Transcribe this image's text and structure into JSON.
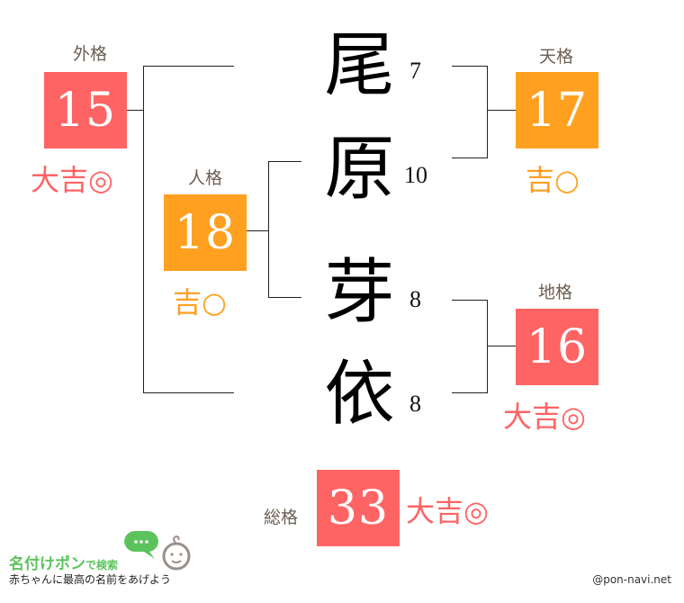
{
  "name_chars": [
    {
      "char": "尾",
      "strokes": "7"
    },
    {
      "char": "原",
      "strokes": "10"
    },
    {
      "char": "芽",
      "strokes": "8"
    },
    {
      "char": "依",
      "strokes": "8"
    }
  ],
  "gaikaku": {
    "label": "外格",
    "value": "15",
    "fortune": "大吉◎",
    "color": "#ff6464"
  },
  "jinkaku": {
    "label": "人格",
    "value": "18",
    "fortune": "吉○",
    "color": "#ffa021"
  },
  "tenkaku": {
    "label": "天格",
    "value": "17",
    "fortune": "吉○",
    "color": "#ffa021"
  },
  "chikaku": {
    "label": "地格",
    "value": "16",
    "fortune": "大吉◎",
    "color": "#ff6464"
  },
  "soukaku": {
    "label": "総格",
    "value": "33",
    "fortune": "大吉◎",
    "color": "#ff6464"
  },
  "logo": {
    "title": "名付けポン",
    "suffix": "で検索",
    "tagline": "赤ちゃんに最高の名前をあげよう",
    "icon": "baby-face-speech-bubble"
  },
  "credit": "@pon-navi.net"
}
